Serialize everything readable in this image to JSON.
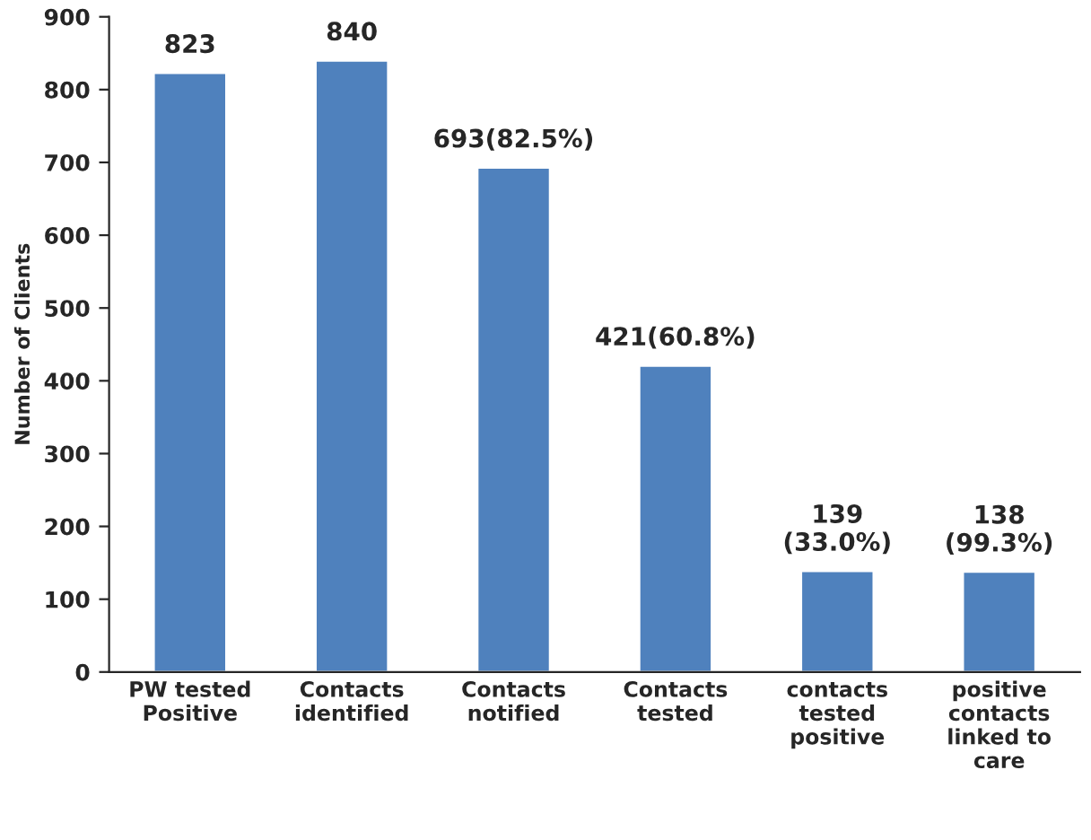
{
  "chart_data": {
    "type": "bar",
    "ylabel": "Number of Clients",
    "categories": [
      "PW tested\nPositive",
      "Contacts\nidentified",
      "Contacts\nnotified",
      "Contacts\ntested",
      "contacts\ntested\npositive",
      "positive\ncontacts\nlinked to\ncare"
    ],
    "values": [
      823,
      840,
      693,
      421,
      139,
      138
    ],
    "value_labels": [
      "823",
      "840",
      "693(82.5%)",
      "421(60.8%)",
      "139\n(33.0%)",
      "138\n(99.3%)"
    ],
    "color": "#4f81bd",
    "ylim": [
      0,
      900
    ],
    "yticks": [
      0,
      100,
      200,
      300,
      400,
      500,
      600,
      700,
      800,
      900
    ],
    "grid": false
  }
}
